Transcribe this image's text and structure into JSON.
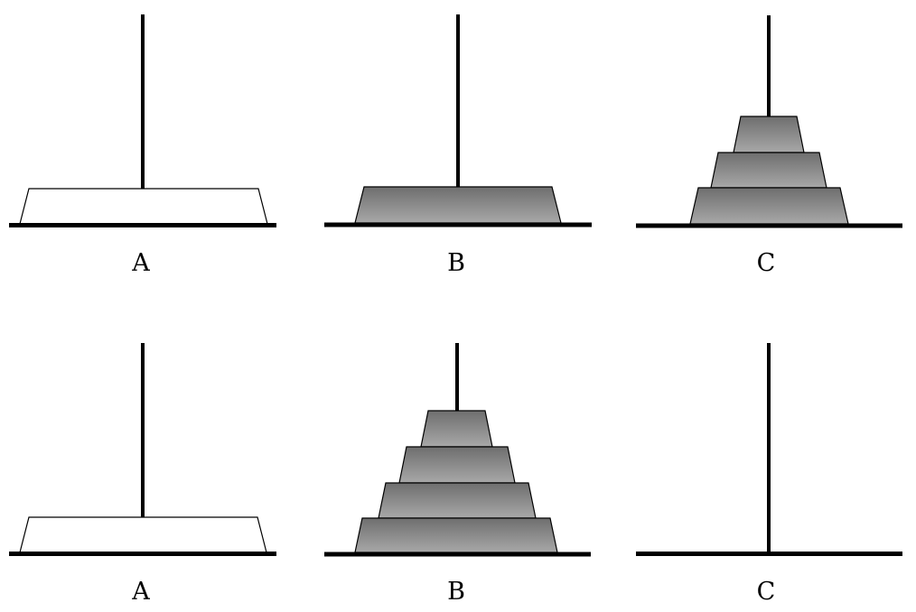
{
  "rows": [
    {
      "pegs": [
        {
          "label": "A",
          "disks": [
            {
              "fill": "white"
            }
          ]
        },
        {
          "label": "B",
          "disks": [
            {
              "fill": "gray"
            }
          ]
        },
        {
          "label": "C",
          "disks": [
            {
              "fill": "gray"
            },
            {
              "fill": "gray"
            },
            {
              "fill": "gray"
            }
          ]
        }
      ]
    },
    {
      "pegs": [
        {
          "label": "A",
          "disks": [
            {
              "fill": "white"
            }
          ]
        },
        {
          "label": "B",
          "disks": [
            {
              "fill": "gray"
            },
            {
              "fill": "gray"
            },
            {
              "fill": "gray"
            },
            {
              "fill": "gray"
            }
          ]
        },
        {
          "label": "C",
          "disks": []
        }
      ]
    }
  ],
  "colors": {
    "disk_gray_top": "#6e6e6e",
    "disk_gray_bottom": "#a8a8a8",
    "line": "#000000",
    "disk_white": "#ffffff"
  }
}
